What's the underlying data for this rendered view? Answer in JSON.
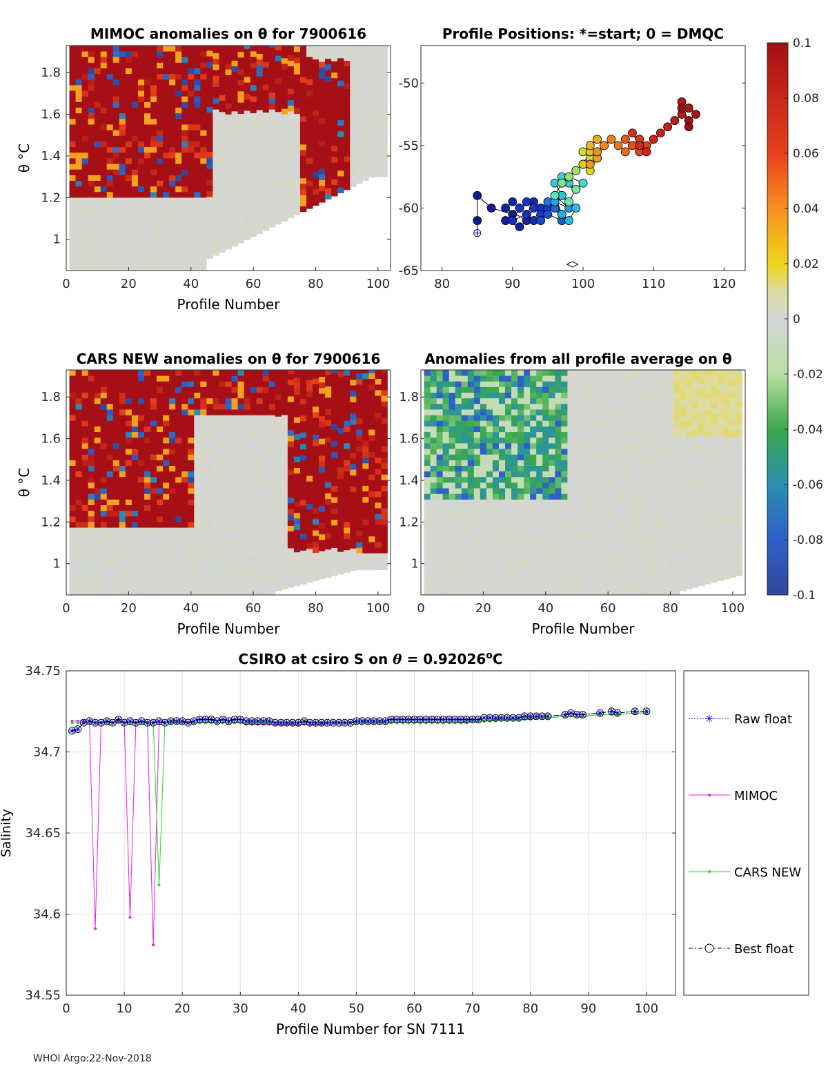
{
  "footer": "WHOI Argo:22-Nov-2018",
  "colors": {
    "raw": "#0000ff",
    "mimoc": "#e01ee0",
    "cars": "#22dd22",
    "best": "#000000",
    "background_anomaly": "#d6d6d6",
    "grid": "#e0e0e0",
    "axis": "#262626"
  },
  "chart_data": [
    {
      "id": "mimoc",
      "type": "heatmap",
      "title": "MIMOC anomalies on θ  for 7900616",
      "xlabel": "Profile Number",
      "ylabel": "θ °C",
      "xlim": [
        0,
        104
      ],
      "ylim": [
        0.85,
        1.93
      ],
      "xticks": [
        0,
        20,
        40,
        60,
        80,
        100
      ],
      "yticks": [
        1,
        1.2,
        1.4,
        1.6,
        1.8
      ],
      "ytick_labels": [
        "1",
        "1.2",
        "1.4",
        "1.6",
        "1.8"
      ],
      "anomaly_regions": [
        {
          "sign": "positive",
          "x": [
            0,
            45
          ],
          "y": [
            1.2,
            1.93
          ]
        },
        {
          "sign": "positive",
          "x": [
            45,
            75
          ],
          "y": [
            1.6,
            1.93
          ]
        },
        {
          "sign": "positive",
          "x": [
            75,
            90
          ],
          "y": [
            1.1,
            1.85
          ]
        }
      ]
    },
    {
      "id": "positions",
      "type": "scatter",
      "title": "Profile Positions: *=start; 0 = DMQC",
      "xlabel": "",
      "ylabel": "",
      "xlim": [
        77,
        123
      ],
      "ylim": [
        -65,
        -47
      ],
      "xticks": [
        80,
        90,
        100,
        110,
        120
      ],
      "yticks": [
        -65,
        -60,
        -55,
        -50
      ],
      "start_marker": [
        85,
        -62
      ],
      "dmqc_marker": [
        98.5,
        -64.5
      ],
      "track_lon": [
        85,
        85,
        85,
        87,
        90,
        89,
        91,
        92,
        89,
        90,
        91,
        93,
        92,
        94,
        93,
        92,
        90,
        91,
        92,
        93,
        94,
        95,
        96,
        94,
        95,
        97,
        96,
        95,
        97,
        96,
        98,
        96,
        97,
        98,
        99,
        97,
        96,
        98,
        97,
        99,
        100,
        98,
        99,
        97,
        96,
        98,
        99,
        97,
        98,
        99,
        100,
        101,
        100,
        102,
        101,
        100,
        101,
        102,
        101,
        102,
        103,
        102,
        101,
        102,
        103,
        104,
        105,
        106,
        107,
        106,
        107,
        108,
        109,
        108,
        107,
        108,
        109,
        110,
        111,
        112,
        113,
        114,
        115,
        114,
        115,
        116,
        115,
        114,
        115
      ],
      "track_lat": [
        -62,
        -61,
        -59,
        -60,
        -60.5,
        -61,
        -61.5,
        -61,
        -60,
        -59.5,
        -60,
        -59.5,
        -60.5,
        -60,
        -61,
        -60.5,
        -61,
        -60,
        -59.5,
        -60,
        -60.5,
        -60,
        -59.5,
        -61,
        -60.5,
        -61,
        -60,
        -59.5,
        -60.5,
        -59,
        -60,
        -59.5,
        -60.5,
        -61,
        -60,
        -59,
        -58,
        -58,
        -57.5,
        -58.5,
        -58,
        -57.5,
        -57,
        -58,
        -59,
        -59.5,
        -58.5,
        -58,
        -57.5,
        -57,
        -56.5,
        -56,
        -55.5,
        -56,
        -57,
        -56.5,
        -55.5,
        -56,
        -55,
        -54.5,
        -55,
        -56,
        -56.5,
        -55.5,
        -55,
        -54.5,
        -55,
        -55.5,
        -55,
        -54.5,
        -55,
        -55.5,
        -55,
        -54.5,
        -54,
        -55,
        -55.5,
        -54.5,
        -54,
        -53.5,
        -53,
        -52.5,
        -52,
        -51.5,
        -52,
        -52.5,
        -53,
        -52,
        -53.5
      ],
      "colorbar": {
        "min": -0.1,
        "max": 0.1,
        "ticks": [
          0.1,
          0.08,
          0.06,
          0.04,
          0.02,
          0,
          -0.02,
          -0.04,
          -0.06,
          -0.08,
          -0.1
        ],
        "tick_labels": [
          "0.1",
          "0.08",
          "0.06",
          "0.04",
          "0.02",
          "0",
          "-0.02",
          "-0.04",
          "-0.06",
          "-0.08",
          "-0.1"
        ]
      }
    },
    {
      "id": "cars",
      "type": "heatmap",
      "title": "CARS NEW anomalies on θ for 7900616",
      "xlabel": "Profile Number",
      "ylabel": "θ °C",
      "xlim": [
        0,
        104
      ],
      "ylim": [
        0.85,
        1.93
      ],
      "xticks": [
        0,
        20,
        40,
        60,
        80,
        100
      ],
      "yticks": [
        1,
        1.2,
        1.4,
        1.6,
        1.8
      ],
      "ytick_labels": [
        "1",
        "1.2",
        "1.4",
        "1.6",
        "1.8"
      ],
      "anomaly_regions": [
        {
          "sign": "positive",
          "x": [
            0,
            40
          ],
          "y": [
            1.15,
            1.93
          ]
        },
        {
          "sign": "positive",
          "x": [
            40,
            70
          ],
          "y": [
            1.7,
            1.93
          ]
        },
        {
          "sign": "positive",
          "x": [
            70,
            104
          ],
          "y": [
            1.05,
            1.93
          ]
        }
      ]
    },
    {
      "id": "allavg",
      "type": "heatmap",
      "title": "Anomalies from all profile average on θ",
      "xlabel": "Profile Number",
      "ylabel": "",
      "xlim": [
        0,
        104
      ],
      "ylim": [
        0.85,
        1.93
      ],
      "xticks": [
        0,
        20,
        40,
        60,
        80,
        100
      ],
      "yticks": [
        1,
        1.2,
        1.4,
        1.6,
        1.8
      ],
      "ytick_labels": [
        "1",
        "1.2",
        "1.4",
        "1.6",
        "1.8"
      ],
      "anomaly_regions": [
        {
          "sign": "negative",
          "x": [
            0,
            45
          ],
          "y": [
            1.3,
            1.93
          ]
        },
        {
          "sign": "slight-positive",
          "x": [
            80,
            104
          ],
          "y": [
            1.6,
            1.93
          ]
        }
      ]
    },
    {
      "id": "salinity",
      "type": "line",
      "title": "CSIRO at csiro S on θ = 0.92026°C",
      "title_main": "CSIRO at csiro S on ",
      "title_sym": "θ",
      "title_eq": " = 0.92026",
      "title_sup": "o",
      "title_unit": "C",
      "xlabel": "Profile Number for SN 7111",
      "ylabel": "Salinity",
      "xlim": [
        0,
        105
      ],
      "ylim": [
        34.55,
        34.75
      ],
      "xticks": [
        0,
        10,
        20,
        30,
        40,
        50,
        60,
        70,
        80,
        90,
        100
      ],
      "yticks": [
        34.55,
        34.6,
        34.65,
        34.7,
        34.75
      ],
      "ytick_labels": [
        "34.55",
        "34.6",
        "34.65",
        "34.7",
        "34.75"
      ],
      "legend": [
        "Raw float",
        "MIMOC",
        "CARS NEW",
        "Best float"
      ],
      "x": [
        1,
        2,
        3,
        4,
        5,
        6,
        7,
        8,
        9,
        10,
        11,
        12,
        13,
        14,
        15,
        16,
        17,
        18,
        19,
        20,
        21,
        22,
        23,
        24,
        25,
        26,
        27,
        28,
        29,
        30,
        31,
        32,
        33,
        34,
        35,
        36,
        37,
        38,
        39,
        40,
        41,
        42,
        43,
        44,
        45,
        46,
        47,
        48,
        49,
        50,
        51,
        52,
        53,
        54,
        55,
        56,
        57,
        58,
        59,
        60,
        61,
        62,
        63,
        64,
        65,
        66,
        67,
        68,
        69,
        70,
        71,
        72,
        73,
        74,
        75,
        76,
        77,
        78,
        79,
        80,
        81,
        82,
        83,
        86,
        87,
        88,
        89,
        92,
        94,
        95,
        98,
        100
      ],
      "series": [
        {
          "name": "Raw float",
          "values": [
            34.713,
            34.714,
            34.718,
            34.719,
            34.718,
            34.718,
            34.719,
            34.718,
            34.72,
            34.718,
            34.719,
            34.718,
            34.719,
            34.718,
            34.718,
            34.719,
            34.718,
            34.719,
            34.719,
            34.719,
            34.718,
            34.719,
            34.72,
            34.72,
            34.72,
            34.719,
            34.72,
            34.719,
            34.72,
            34.72,
            34.719,
            34.719,
            34.719,
            34.719,
            34.719,
            34.718,
            34.718,
            34.718,
            34.718,
            34.718,
            34.719,
            34.718,
            34.718,
            34.718,
            34.718,
            34.718,
            34.718,
            34.718,
            34.718,
            34.719,
            34.719,
            34.719,
            34.719,
            34.719,
            34.719,
            34.72,
            34.72,
            34.72,
            34.72,
            34.72,
            34.72,
            34.72,
            34.72,
            34.72,
            34.72,
            34.72,
            34.72,
            34.72,
            34.72,
            34.72,
            34.72,
            34.721,
            34.721,
            34.721,
            34.721,
            34.721,
            34.721,
            34.721,
            34.722,
            34.722,
            34.722,
            34.722,
            34.722,
            34.723,
            34.724,
            34.723,
            34.723,
            34.724,
            34.725,
            34.724,
            34.725,
            34.725
          ]
        },
        {
          "name": "MIMOC",
          "values": [
            34.719,
            34.719,
            34.719,
            34.719,
            34.591,
            34.718,
            34.718,
            34.718,
            34.719,
            34.718,
            34.598,
            34.718,
            34.718,
            34.718,
            34.581,
            34.718,
            34.718,
            34.718,
            34.718,
            34.718,
            34.718,
            34.718,
            34.718,
            34.718,
            34.718,
            34.718,
            34.718,
            34.718,
            34.718,
            34.718,
            34.717,
            34.717,
            34.717,
            34.717,
            34.717,
            34.717,
            34.717,
            34.717,
            34.717,
            34.717,
            34.717,
            34.717,
            34.717,
            34.717,
            34.718,
            34.718,
            34.718,
            34.718,
            34.718,
            34.718,
            34.718,
            34.718,
            34.718,
            34.718,
            34.718,
            34.718,
            34.718,
            34.718,
            34.718,
            34.718,
            34.718,
            34.718,
            34.718,
            34.718,
            34.718,
            34.718,
            34.718,
            34.718,
            34.718,
            34.719,
            34.719,
            34.719,
            34.719,
            34.72,
            34.72,
            34.72,
            34.72,
            34.72,
            34.72,
            34.721,
            34.721,
            34.721,
            34.721,
            34.722,
            34.722,
            34.722,
            34.722,
            34.723,
            34.723,
            34.723,
            34.724,
            34.724
          ]
        },
        {
          "name": "CARS NEW",
          "values": [
            34.718,
            34.718,
            34.718,
            34.718,
            34.718,
            34.718,
            34.718,
            34.718,
            34.718,
            34.718,
            34.718,
            34.718,
            34.718,
            34.718,
            34.718,
            34.618,
            34.718,
            34.718,
            34.718,
            34.718,
            34.718,
            34.718,
            34.718,
            34.718,
            34.718,
            34.718,
            34.718,
            34.718,
            34.718,
            34.718,
            34.718,
            34.718,
            34.718,
            34.718,
            34.718,
            34.718,
            34.718,
            34.718,
            34.718,
            34.718,
            34.718,
            34.718,
            34.718,
            34.718,
            34.718,
            34.718,
            34.718,
            34.718,
            34.718,
            34.718,
            34.718,
            34.718,
            34.718,
            34.718,
            34.718,
            34.718,
            34.718,
            34.718,
            34.718,
            34.718,
            34.718,
            34.718,
            34.718,
            34.718,
            34.718,
            34.718,
            34.718,
            34.718,
            34.719,
            34.719,
            34.719,
            34.719,
            34.719,
            34.719,
            34.72,
            34.72,
            34.72,
            34.72,
            34.72,
            34.72,
            34.721,
            34.721,
            34.721,
            34.722,
            34.722,
            34.722,
            34.722,
            34.723,
            34.723,
            34.723,
            34.724,
            34.724
          ]
        },
        {
          "name": "Best float",
          "values": [
            34.713,
            34.714,
            34.718,
            34.719,
            34.718,
            34.718,
            34.719,
            34.718,
            34.72,
            34.718,
            34.719,
            34.718,
            34.719,
            34.718,
            34.718,
            34.719,
            34.718,
            34.719,
            34.719,
            34.719,
            34.718,
            34.719,
            34.72,
            34.72,
            34.72,
            34.719,
            34.72,
            34.719,
            34.72,
            34.72,
            34.719,
            34.719,
            34.719,
            34.719,
            34.719,
            34.718,
            34.718,
            34.718,
            34.718,
            34.718,
            34.719,
            34.718,
            34.718,
            34.718,
            34.718,
            34.718,
            34.718,
            34.718,
            34.718,
            34.719,
            34.719,
            34.719,
            34.719,
            34.719,
            34.719,
            34.72,
            34.72,
            34.72,
            34.72,
            34.72,
            34.72,
            34.72,
            34.72,
            34.72,
            34.72,
            34.72,
            34.72,
            34.72,
            34.72,
            34.72,
            34.72,
            34.721,
            34.721,
            34.721,
            34.721,
            34.721,
            34.721,
            34.721,
            34.722,
            34.722,
            34.722,
            34.722,
            34.722,
            34.723,
            34.724,
            34.723,
            34.723,
            34.724,
            34.725,
            34.724,
            34.725,
            34.725
          ]
        }
      ]
    }
  ]
}
